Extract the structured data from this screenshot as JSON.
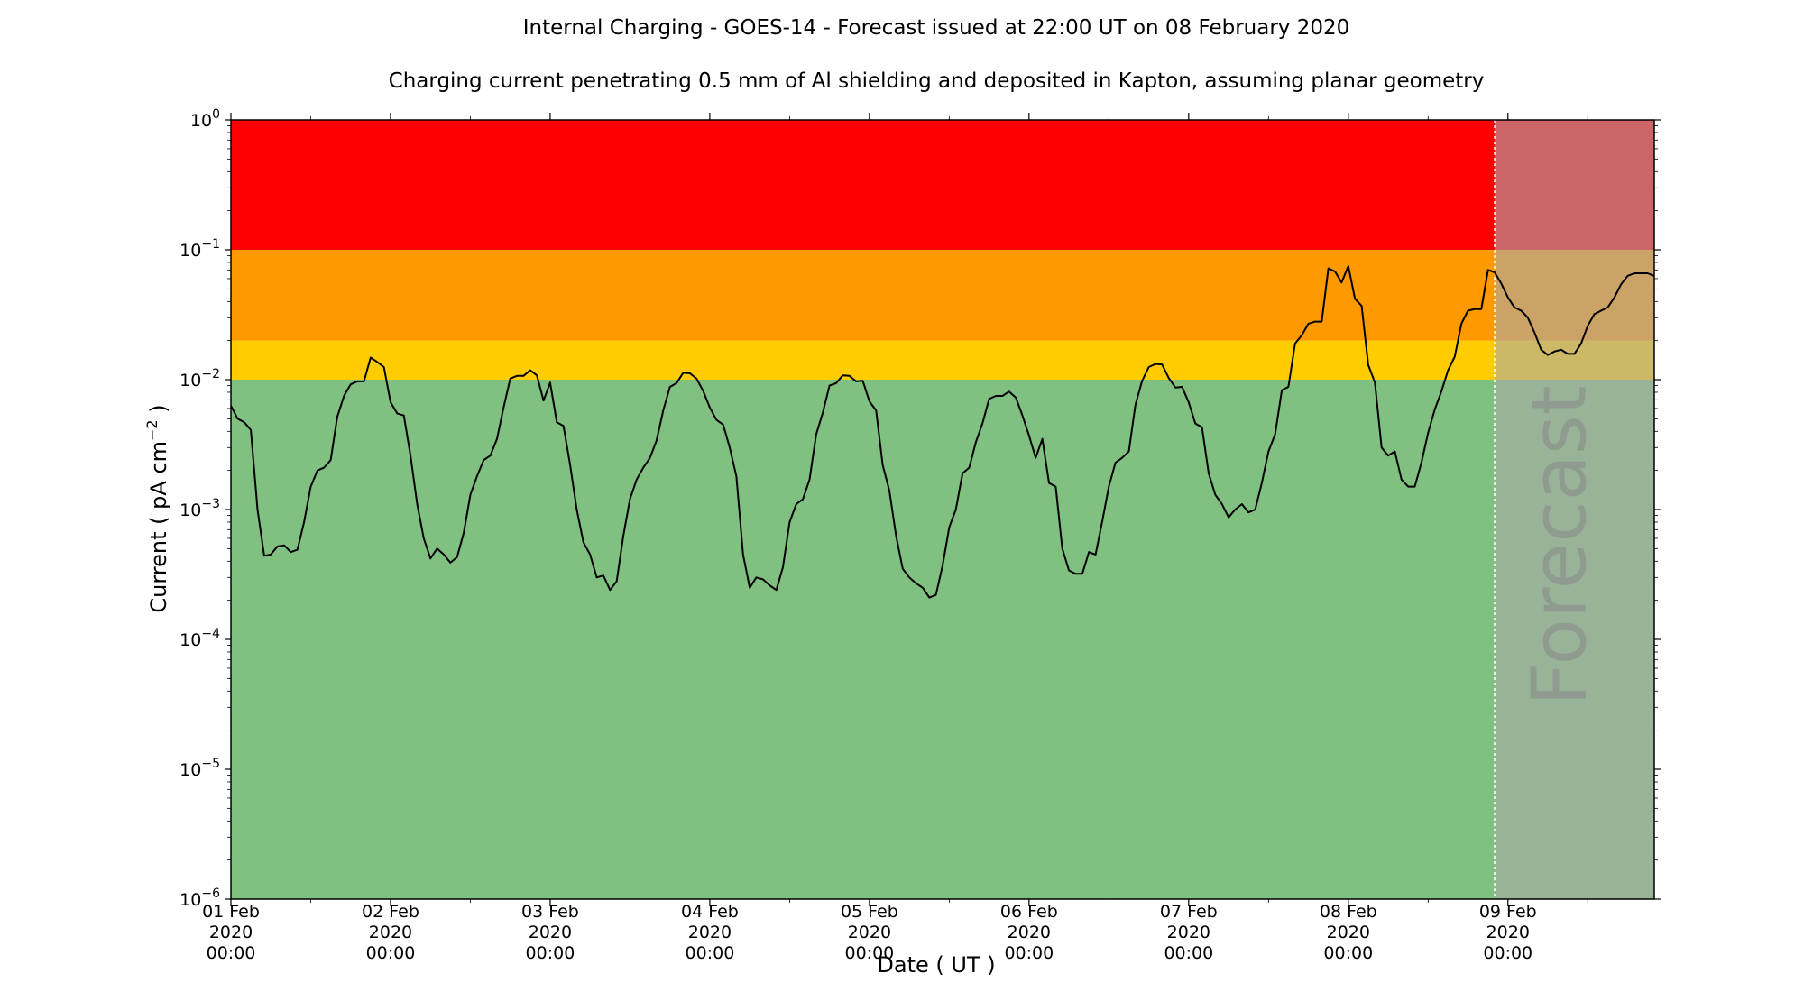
{
  "chart_data": {
    "type": "line",
    "title": "Internal Charging - GOES-14 - Forecast issued at 22:00 UT on 08 February 2020",
    "subtitle": "Charging current penetrating 0.5 mm of Al shielding and deposited in Kapton, assuming planar geometry",
    "xlabel": "Date ( UT )",
    "ylabel": "Current ( pA cm⁻² )",
    "yscale": "log",
    "ylim": [
      1e-06,
      1
    ],
    "xlim": [
      "2020-02-01T00:00",
      "2020-02-09T22:00"
    ],
    "y_ticks": [
      {
        "value": 1e-06,
        "base": "10",
        "exp": "−6"
      },
      {
        "value": 1e-05,
        "base": "10",
        "exp": "−5"
      },
      {
        "value": 0.0001,
        "base": "10",
        "exp": "−4"
      },
      {
        "value": 0.001,
        "base": "10",
        "exp": "−3"
      },
      {
        "value": 0.01,
        "base": "10",
        "exp": "−2"
      },
      {
        "value": 0.1,
        "base": "10",
        "exp": "−1"
      },
      {
        "value": 1,
        "base": "10",
        "exp": "0"
      }
    ],
    "x_ticks": [
      {
        "date": "2020-02-01T00:00",
        "lines": [
          "01 Feb",
          "2020",
          "00:00"
        ]
      },
      {
        "date": "2020-02-02T00:00",
        "lines": [
          "02 Feb",
          "2020",
          "00:00"
        ]
      },
      {
        "date": "2020-02-03T00:00",
        "lines": [
          "03 Feb",
          "2020",
          "00:00"
        ]
      },
      {
        "date": "2020-02-04T00:00",
        "lines": [
          "04 Feb",
          "2020",
          "00:00"
        ]
      },
      {
        "date": "2020-02-05T00:00",
        "lines": [
          "05 Feb",
          "2020",
          "00:00"
        ]
      },
      {
        "date": "2020-02-06T00:00",
        "lines": [
          "06 Feb",
          "2020",
          "00:00"
        ]
      },
      {
        "date": "2020-02-07T00:00",
        "lines": [
          "07 Feb",
          "2020",
          "00:00"
        ]
      },
      {
        "date": "2020-02-08T00:00",
        "lines": [
          "08 Feb",
          "2020",
          "00:00"
        ]
      },
      {
        "date": "2020-02-09T00:00",
        "lines": [
          "09 Feb",
          "2020",
          "00:00"
        ]
      }
    ],
    "bands": [
      {
        "from": 1e-06,
        "to": 0.01,
        "color": "#80c080"
      },
      {
        "from": 0.01,
        "to": 0.02,
        "color": "#ffcc00"
      },
      {
        "from": 0.02,
        "to": 0.1,
        "color": "#ff9900"
      },
      {
        "from": 0.1,
        "to": 1,
        "color": "#ff0000"
      }
    ],
    "forecast": {
      "start": "2020-02-08T22:00",
      "label": "Forecast",
      "overlay_color": "#aaaaaa"
    },
    "line_color": "#000000",
    "series": [
      {
        "x": [
          "2020-02-01T00:00",
          "2020-02-01T01:00",
          "2020-02-01T02:00",
          "2020-02-01T03:00",
          "2020-02-01T04:00",
          "2020-02-01T05:00",
          "2020-02-01T06:00",
          "2020-02-01T07:00",
          "2020-02-01T08:00",
          "2020-02-01T09:00",
          "2020-02-01T10:00",
          "2020-02-01T11:00",
          "2020-02-01T12:00",
          "2020-02-01T13:00",
          "2020-02-01T14:00",
          "2020-02-01T15:00",
          "2020-02-01T16:00",
          "2020-02-01T17:00",
          "2020-02-01T18:00",
          "2020-02-01T19:00",
          "2020-02-01T20:00",
          "2020-02-01T21:00",
          "2020-02-01T22:00",
          "2020-02-01T23:00",
          "2020-02-02T00:00",
          "2020-02-02T01:00",
          "2020-02-02T02:00",
          "2020-02-02T03:00",
          "2020-02-02T04:00",
          "2020-02-02T05:00",
          "2020-02-02T06:00",
          "2020-02-02T07:00",
          "2020-02-02T08:00",
          "2020-02-02T09:00",
          "2020-02-02T10:00",
          "2020-02-02T11:00",
          "2020-02-02T12:00",
          "2020-02-02T13:00",
          "2020-02-02T14:00",
          "2020-02-02T15:00",
          "2020-02-02T16:00",
          "2020-02-02T17:00",
          "2020-02-02T18:00",
          "2020-02-02T19:00",
          "2020-02-02T20:00",
          "2020-02-02T21:00",
          "2020-02-02T22:00",
          "2020-02-02T23:00",
          "2020-02-03T00:00",
          "2020-02-03T01:00",
          "2020-02-03T02:00",
          "2020-02-03T03:00",
          "2020-02-03T04:00",
          "2020-02-03T05:00",
          "2020-02-03T06:00",
          "2020-02-03T07:00",
          "2020-02-03T08:00",
          "2020-02-03T09:00",
          "2020-02-03T10:00",
          "2020-02-03T11:00",
          "2020-02-03T12:00",
          "2020-02-03T13:00",
          "2020-02-03T14:00",
          "2020-02-03T15:00",
          "2020-02-03T16:00",
          "2020-02-03T17:00",
          "2020-02-03T18:00",
          "2020-02-03T19:00",
          "2020-02-03T20:00",
          "2020-02-03T21:00",
          "2020-02-03T22:00",
          "2020-02-03T23:00",
          "2020-02-04T00:00",
          "2020-02-04T01:00",
          "2020-02-04T02:00",
          "2020-02-04T03:00",
          "2020-02-04T04:00",
          "2020-02-04T05:00",
          "2020-02-04T06:00",
          "2020-02-04T07:00",
          "2020-02-04T08:00",
          "2020-02-04T09:00",
          "2020-02-04T10:00",
          "2020-02-04T11:00",
          "2020-02-04T12:00",
          "2020-02-04T13:00",
          "2020-02-04T14:00",
          "2020-02-04T15:00",
          "2020-02-04T16:00",
          "2020-02-04T17:00",
          "2020-02-04T18:00",
          "2020-02-04T19:00",
          "2020-02-04T20:00",
          "2020-02-04T21:00",
          "2020-02-04T22:00",
          "2020-02-04T23:00",
          "2020-02-05T00:00",
          "2020-02-05T01:00",
          "2020-02-05T02:00",
          "2020-02-05T03:00",
          "2020-02-05T04:00",
          "2020-02-05T05:00",
          "2020-02-05T06:00",
          "2020-02-05T07:00",
          "2020-02-05T08:00",
          "2020-02-05T09:00",
          "2020-02-05T10:00",
          "2020-02-05T11:00",
          "2020-02-05T12:00",
          "2020-02-05T13:00",
          "2020-02-05T14:00",
          "2020-02-05T15:00",
          "2020-02-05T16:00",
          "2020-02-05T17:00",
          "2020-02-05T18:00",
          "2020-02-05T19:00",
          "2020-02-05T20:00",
          "2020-02-05T21:00",
          "2020-02-05T22:00",
          "2020-02-05T23:00",
          "2020-02-06T00:00",
          "2020-02-06T01:00",
          "2020-02-06T02:00",
          "2020-02-06T03:00",
          "2020-02-06T04:00",
          "2020-02-06T05:00",
          "2020-02-06T06:00",
          "2020-02-06T07:00",
          "2020-02-06T08:00",
          "2020-02-06T09:00",
          "2020-02-06T10:00",
          "2020-02-06T11:00",
          "2020-02-06T12:00",
          "2020-02-06T13:00",
          "2020-02-06T14:00",
          "2020-02-06T15:00",
          "2020-02-06T16:00",
          "2020-02-06T17:00",
          "2020-02-06T18:00",
          "2020-02-06T19:00",
          "2020-02-06T20:00",
          "2020-02-06T21:00",
          "2020-02-06T22:00",
          "2020-02-06T23:00",
          "2020-02-07T00:00",
          "2020-02-07T01:00",
          "2020-02-07T02:00",
          "2020-02-07T03:00",
          "2020-02-07T04:00",
          "2020-02-07T05:00",
          "2020-02-07T06:00",
          "2020-02-07T07:00",
          "2020-02-07T08:00",
          "2020-02-07T09:00",
          "2020-02-07T10:00",
          "2020-02-07T11:00",
          "2020-02-07T12:00",
          "2020-02-07T13:00",
          "2020-02-07T14:00",
          "2020-02-07T15:00",
          "2020-02-07T16:00",
          "2020-02-07T17:00",
          "2020-02-07T18:00",
          "2020-02-07T19:00",
          "2020-02-07T20:00",
          "2020-02-07T21:00",
          "2020-02-07T22:00",
          "2020-02-07T23:00",
          "2020-02-08T00:00",
          "2020-02-08T01:00",
          "2020-02-08T02:00",
          "2020-02-08T03:00",
          "2020-02-08T04:00",
          "2020-02-08T05:00",
          "2020-02-08T06:00",
          "2020-02-08T07:00",
          "2020-02-08T08:00",
          "2020-02-08T09:00",
          "2020-02-08T10:00",
          "2020-02-08T11:00",
          "2020-02-08T12:00",
          "2020-02-08T13:00",
          "2020-02-08T14:00",
          "2020-02-08T15:00",
          "2020-02-08T16:00",
          "2020-02-08T17:00",
          "2020-02-08T18:00",
          "2020-02-08T19:00",
          "2020-02-08T20:00",
          "2020-02-08T21:00",
          "2020-02-08T22:00",
          "2020-02-08T23:00",
          "2020-02-09T00:00",
          "2020-02-09T01:00",
          "2020-02-09T02:00",
          "2020-02-09T03:00",
          "2020-02-09T04:00",
          "2020-02-09T05:00",
          "2020-02-09T06:00",
          "2020-02-09T07:00",
          "2020-02-09T08:00",
          "2020-02-09T09:00",
          "2020-02-09T10:00",
          "2020-02-09T11:00",
          "2020-02-09T12:00",
          "2020-02-09T13:00",
          "2020-02-09T14:00",
          "2020-02-09T15:00",
          "2020-02-09T16:00",
          "2020-02-09T17:00",
          "2020-02-09T18:00",
          "2020-02-09T19:00",
          "2020-02-09T20:00",
          "2020-02-09T21:00",
          "2020-02-09T22:00"
        ],
        "y": [
          0.0063,
          0.005,
          0.0047,
          0.0041,
          0.001,
          0.00044,
          0.00045,
          0.00052,
          0.00053,
          0.00047,
          0.00049,
          0.0008,
          0.0015,
          0.002,
          0.0021,
          0.0024,
          0.0052,
          0.0075,
          0.0092,
          0.0097,
          0.0097,
          0.0148,
          0.0137,
          0.0125,
          0.0067,
          0.0055,
          0.0053,
          0.0026,
          0.0011,
          0.0006,
          0.00042,
          0.0005,
          0.00045,
          0.00039,
          0.00043,
          0.00066,
          0.0013,
          0.0018,
          0.0024,
          0.0026,
          0.0035,
          0.0061,
          0.0102,
          0.0107,
          0.0107,
          0.0118,
          0.0108,
          0.0069,
          0.0095,
          0.0047,
          0.0044,
          0.0022,
          0.001,
          0.00056,
          0.00045,
          0.0003,
          0.00031,
          0.00024,
          0.00028,
          0.00063,
          0.0012,
          0.0017,
          0.0021,
          0.0025,
          0.0034,
          0.0058,
          0.0088,
          0.0094,
          0.0113,
          0.0112,
          0.0102,
          0.0082,
          0.0061,
          0.0049,
          0.0045,
          0.003,
          0.0018,
          0.00045,
          0.00025,
          0.0003,
          0.00029,
          0.00026,
          0.00024,
          0.00036,
          0.0008,
          0.0011,
          0.0012,
          0.0017,
          0.0038,
          0.0056,
          0.009,
          0.0094,
          0.0108,
          0.0107,
          0.0097,
          0.0098,
          0.0068,
          0.0058,
          0.0022,
          0.0014,
          0.00063,
          0.00035,
          0.0003,
          0.00027,
          0.00025,
          0.00021,
          0.00022,
          0.00037,
          0.00073,
          0.001,
          0.0019,
          0.0021,
          0.0033,
          0.0046,
          0.0071,
          0.0075,
          0.0075,
          0.0081,
          0.0073,
          0.0053,
          0.0037,
          0.0025,
          0.0035,
          0.0016,
          0.0015,
          0.0005,
          0.00034,
          0.00032,
          0.00032,
          0.00047,
          0.00045,
          0.00081,
          0.0015,
          0.0023,
          0.0025,
          0.0028,
          0.0064,
          0.0098,
          0.0125,
          0.0132,
          0.0131,
          0.0103,
          0.0087,
          0.0088,
          0.0067,
          0.0046,
          0.0043,
          0.0019,
          0.0013,
          0.0011,
          0.00087,
          0.001,
          0.0011,
          0.00095,
          0.001,
          0.0016,
          0.0028,
          0.0038,
          0.0083,
          0.0088,
          0.019,
          0.022,
          0.027,
          0.028,
          0.028,
          0.072,
          0.068,
          0.056,
          0.075,
          0.042,
          0.037,
          0.013,
          0.0095,
          0.003,
          0.0026,
          0.0028,
          0.0017,
          0.0015,
          0.0015,
          0.0023,
          0.0039,
          0.0059,
          0.0081,
          0.0118,
          0.015,
          0.027,
          0.034,
          0.035,
          0.035,
          0.07,
          0.067,
          0.055,
          0.043,
          0.036,
          0.034,
          0.03,
          0.023,
          0.017,
          0.0155,
          0.0165,
          0.017,
          0.0158,
          0.0158,
          0.019,
          0.026,
          0.032,
          0.034,
          0.036,
          0.043,
          0.054,
          0.063,
          0.066,
          0.066,
          0.066,
          0.063
        ]
      }
    ]
  }
}
